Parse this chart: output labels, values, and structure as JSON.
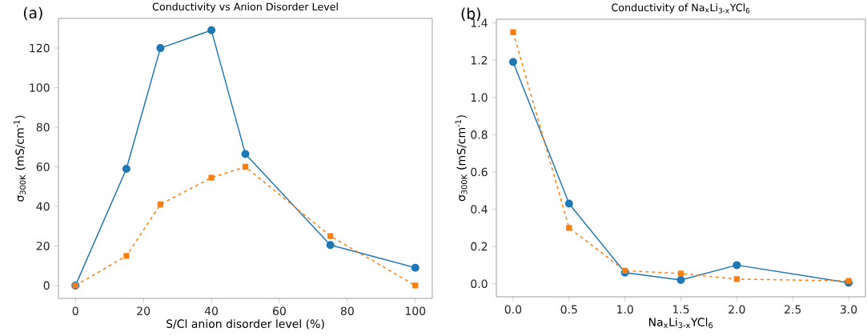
{
  "chart_data": [
    {
      "type": "line",
      "title": "Conductivity vs Anion Disorder Level",
      "xlabel": "S/Cl anion disorder level (%)",
      "ylabel": "σ$_{300K}$ (mS/cm$^{-1}$)",
      "annotations": [
        "(a)"
      ],
      "x": [
        0,
        15,
        25,
        40,
        50,
        75,
        100
      ],
      "series": [
        {
          "color": "#1f77b4",
          "marker": "circle",
          "line_style": "solid",
          "values": [
            0,
            59,
            120,
            129,
            66.5,
            20.5,
            9
          ]
        },
        {
          "color": "#ff7f0e",
          "marker": "square",
          "line_style": "dashed",
          "values": [
            0,
            15,
            41,
            54.5,
            60,
            25,
            0
          ]
        }
      ],
      "xlim": [
        -5,
        105
      ],
      "ylim": [
        -6.5,
        135
      ],
      "xticks": [
        0,
        20,
        40,
        60,
        80,
        100
      ],
      "yticks": [
        0,
        20,
        40,
        60,
        80,
        100,
        120
      ]
    },
    {
      "type": "line",
      "title": "Conductivity of Na$_{x}$Li$_{3-x}$YCl$_{6}$",
      "xlabel": "Na$_{x}$Li$_{3-x}$YCl$_{6}$",
      "ylabel": "σ$_{300K}$ (mS/cm$^{-1}$)",
      "annotations": [
        "(b)"
      ],
      "x": [
        0,
        0.5,
        1,
        1.5,
        2,
        3
      ],
      "series": [
        {
          "color": "#1f77b4",
          "marker": "circle",
          "line_style": "solid",
          "values": [
            1.19,
            0.43,
            0.06,
            0.02,
            0.1,
            0.005
          ]
        },
        {
          "color": "#ff7f0e",
          "marker": "square",
          "line_style": "dashed",
          "values": [
            1.35,
            0.3,
            0.07,
            0.055,
            0.025,
            0.015
          ]
        }
      ],
      "xlim": [
        -0.15,
        3.15
      ],
      "ylim": [
        -0.07,
        1.42
      ],
      "xticks": [
        {
          "value": 0,
          "label": "0.0"
        },
        {
          "value": 0.5,
          "label": "0.5"
        },
        {
          "value": 1,
          "label": "1.0"
        },
        {
          "value": 1.5,
          "label": "1.5"
        },
        {
          "value": 2,
          "label": "2.0"
        },
        {
          "value": 2.5,
          "label": "2.5"
        },
        {
          "value": 3,
          "label": "3.0"
        }
      ],
      "yticks": [
        {
          "value": 0,
          "label": "0.0"
        },
        {
          "value": 0.2,
          "label": "0.2"
        },
        {
          "value": 0.4,
          "label": "0.4"
        },
        {
          "value": 0.6,
          "label": "0.6"
        },
        {
          "value": 0.8,
          "label": "0.8"
        },
        {
          "value": 1,
          "label": "1.0"
        },
        {
          "value": 1.2,
          "label": "1.2"
        },
        {
          "value": 1.4,
          "label": "1.4"
        }
      ]
    }
  ]
}
